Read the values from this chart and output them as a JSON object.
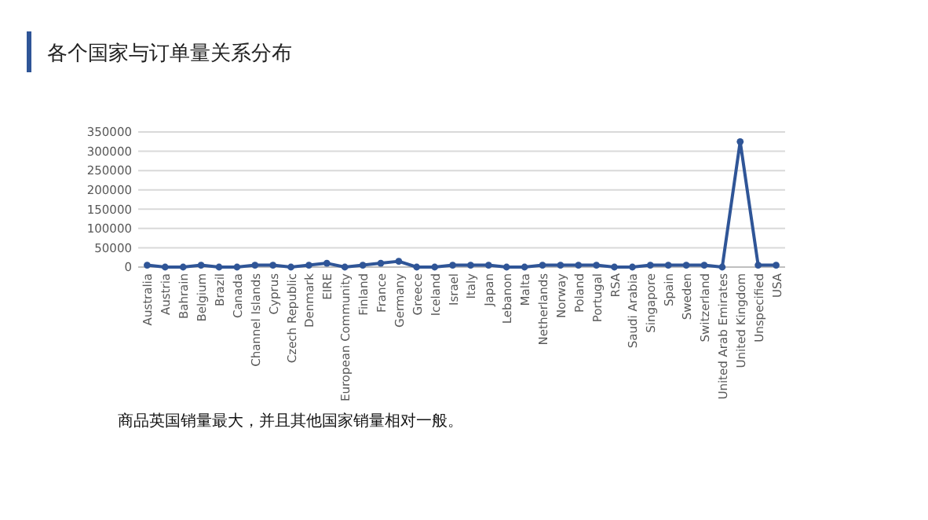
{
  "chart_data": {
    "type": "line",
    "title": "各个国家与订单量关系分布",
    "categories": [
      "Australia",
      "Austria",
      "Bahrain",
      "Belgium",
      "Brazil",
      "Canada",
      "Channel Islands",
      "Cyprus",
      "Czech Republic",
      "Denmark",
      "EIRE",
      "European Community",
      "Finland",
      "France",
      "Germany",
      "Greece",
      "Iceland",
      "Israel",
      "Italy",
      "Japan",
      "Lebanon",
      "Malta",
      "Netherlands",
      "Norway",
      "Poland",
      "Portugal",
      "RSA",
      "Saudi Arabia",
      "Singapore",
      "Spain",
      "Sweden",
      "Switzerland",
      "United Arab Emirates",
      "United Kingdom",
      "Unspecified",
      "USA"
    ],
    "series": [
      {
        "color": "#2f5597",
        "values": [
          5000,
          0,
          0,
          5000,
          0,
          0,
          5000,
          5000,
          0,
          5000,
          10000,
          0,
          5000,
          10000,
          15000,
          0,
          0,
          5000,
          5000,
          5000,
          0,
          0,
          5000,
          5000,
          5000,
          5000,
          0,
          0,
          5000,
          5000,
          5000,
          5000,
          0,
          325000,
          5000,
          5000
        ]
      }
    ],
    "ylim": [
      0,
      350000
    ],
    "yticks": [
      0,
      50000,
      100000,
      150000,
      200000,
      250000,
      300000,
      350000
    ],
    "grid": "y",
    "marker": "circle",
    "line_style": "solid",
    "annotations": [
      "商品英国销量最大，并且其他国家销量相对一般。"
    ]
  }
}
